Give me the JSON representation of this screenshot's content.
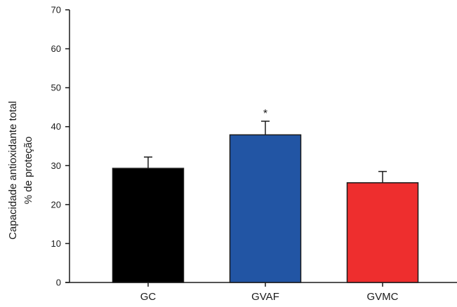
{
  "chart_data": {
    "type": "bar",
    "categories": [
      "GC",
      "GVAF",
      "GVMC"
    ],
    "values": [
      29.3,
      37.9,
      25.6
    ],
    "errors": [
      2.9,
      3.5,
      2.9
    ],
    "significance": [
      "",
      "*",
      ""
    ],
    "colors": [
      "#000000",
      "#2255a4",
      "#ee2e2e"
    ],
    "ylabel_line1": "Capacidade antioxidante total",
    "ylabel_line2": "% de proteção",
    "ylim": [
      0,
      70
    ],
    "yticks": [
      0,
      10,
      20,
      30,
      40,
      50,
      60,
      70
    ],
    "grid": false
  }
}
